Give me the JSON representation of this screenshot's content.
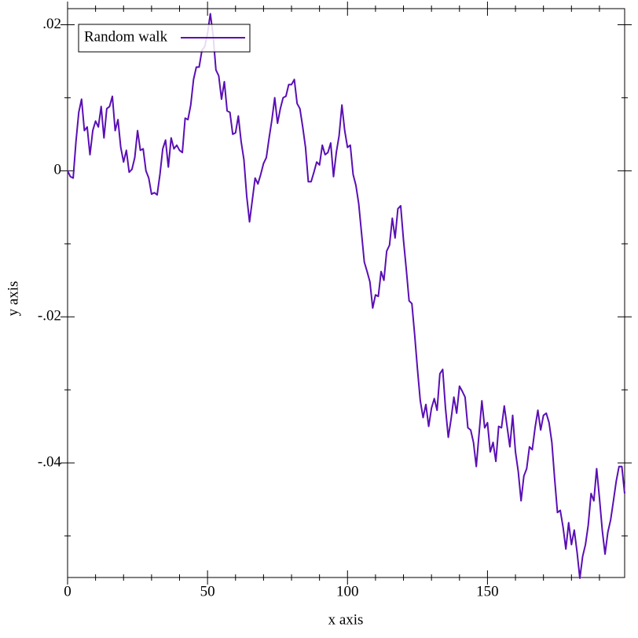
{
  "chart_data": {
    "type": "line",
    "x_label": "x axis",
    "y_label": "y axis",
    "x": [
      0,
      1,
      2,
      3,
      4,
      5,
      6,
      7,
      8,
      9,
      10,
      11,
      12,
      13,
      14,
      15,
      16,
      17,
      18,
      19,
      20,
      21,
      22,
      23,
      24,
      25,
      26,
      27,
      28,
      29,
      30,
      31,
      32,
      33,
      34,
      35,
      36,
      37,
      38,
      39,
      40,
      41,
      42,
      43,
      44,
      45,
      46,
      47,
      48,
      49,
      50,
      51,
      52,
      53,
      54,
      55,
      56,
      57,
      58,
      59,
      60,
      61,
      62,
      63,
      64,
      65,
      66,
      67,
      68,
      69,
      70,
      71,
      72,
      73,
      74,
      75,
      76,
      77,
      78,
      79,
      80,
      81,
      82,
      83,
      84,
      85,
      86,
      87,
      88,
      89,
      90,
      91,
      92,
      93,
      94,
      95,
      96,
      97,
      98,
      99,
      100,
      101,
      102,
      103,
      104,
      105,
      106,
      107,
      108,
      109,
      110,
      111,
      112,
      113,
      114,
      115,
      116,
      117,
      118,
      119,
      120,
      121,
      122,
      123,
      124,
      125,
      126,
      127,
      128,
      129,
      130,
      131,
      132,
      133,
      134,
      135,
      136,
      137,
      138,
      139,
      140,
      141,
      142,
      143,
      144,
      145,
      146,
      147,
      148,
      149,
      150,
      151,
      152,
      153,
      154,
      155,
      156,
      157,
      158,
      159,
      160,
      161,
      162,
      163,
      164,
      165,
      166,
      167,
      168,
      169,
      170,
      171,
      172,
      173,
      174,
      175,
      176,
      177,
      178,
      179,
      180,
      181,
      182,
      183,
      184,
      185,
      186,
      187,
      188,
      189,
      190,
      191,
      192,
      193,
      194,
      195,
      196,
      197,
      198,
      199
    ],
    "series": [
      {
        "name": "Random walk",
        "color": "#5a0fb4",
        "values": [
          0,
          -0.0008,
          -0.001,
          0.004,
          0.008,
          0.0098,
          0.0055,
          0.006,
          0.0022,
          0.0055,
          0.0068,
          0.006,
          0.0088,
          0.0045,
          0.0085,
          0.0088,
          0.0102,
          0.0055,
          0.007,
          0.0032,
          0.0012,
          0.0028,
          -0.0002,
          0.0002,
          0.0018,
          0.0055,
          0.0028,
          0.003,
          0,
          -0.001,
          -0.0032,
          -0.003,
          -0.0033,
          -0.0005,
          0.003,
          0.0042,
          0.0005,
          0.0045,
          0.003,
          0.0035,
          0.0028,
          0.0025,
          0.0072,
          0.007,
          0.009,
          0.0125,
          0.0142,
          0.0142,
          0.0165,
          0.017,
          0.0188,
          0.0215,
          0.0185,
          0.0138,
          0.013,
          0.0098,
          0.0122,
          0.0082,
          0.008,
          0.005,
          0.0052,
          0.0075,
          0.004,
          0.0015,
          -0.0035,
          -0.007,
          -0.004,
          -0.001,
          -0.0018,
          -0.0005,
          0.001,
          0.0018,
          0.0045,
          0.007,
          0.01,
          0.0065,
          0.0085,
          0.01,
          0.0102,
          0.0118,
          0.0118,
          0.0125,
          0.0092,
          0.0085,
          0.006,
          0.0032,
          -0.0015,
          -0.0015,
          -0.0002,
          0.0012,
          0.0008,
          0.0035,
          0.0022,
          0.0025,
          0.0038,
          -0.0008,
          0.0025,
          0.0048,
          0.009,
          0.0055,
          0.0032,
          0.0035,
          -0.0005,
          -0.002,
          -0.0045,
          -0.0085,
          -0.0125,
          -0.0138,
          -0.0152,
          -0.0188,
          -0.017,
          -0.0172,
          -0.0138,
          -0.015,
          -0.011,
          -0.0102,
          -0.0065,
          -0.0092,
          -0.0052,
          -0.0048,
          -0.0095,
          -0.0135,
          -0.0178,
          -0.0182,
          -0.0225,
          -0.0272,
          -0.0315,
          -0.0338,
          -0.032,
          -0.035,
          -0.0325,
          -0.0312,
          -0.0328,
          -0.0278,
          -0.0272,
          -0.0325,
          -0.0365,
          -0.034,
          -0.031,
          -0.0332,
          -0.0295,
          -0.0302,
          -0.031,
          -0.0352,
          -0.0355,
          -0.0372,
          -0.0405,
          -0.036,
          -0.0315,
          -0.0352,
          -0.0345,
          -0.0385,
          -0.0372,
          -0.0398,
          -0.035,
          -0.0352,
          -0.0322,
          -0.035,
          -0.0378,
          -0.0335,
          -0.0385,
          -0.0412,
          -0.0452,
          -0.0418,
          -0.0408,
          -0.0378,
          -0.0382,
          -0.0352,
          -0.0328,
          -0.0355,
          -0.0335,
          -0.0332,
          -0.0345,
          -0.0372,
          -0.0422,
          -0.0468,
          -0.0465,
          -0.0488,
          -0.0518,
          -0.0482,
          -0.0512,
          -0.0492,
          -0.0522,
          -0.0558,
          -0.0528,
          -0.0512,
          -0.0485,
          -0.0442,
          -0.0452,
          -0.0408,
          -0.0448,
          -0.0492,
          -0.0525,
          -0.0495,
          -0.0478,
          -0.0452,
          -0.0425,
          -0.0405,
          -0.0405,
          -0.0442
        ]
      }
    ],
    "xlim": [
      0,
      199
    ],
    "xticks": [
      0,
      50,
      100,
      150
    ],
    "x_minor_ticks": [
      10,
      20,
      30,
      40,
      60,
      70,
      80,
      90,
      110,
      120,
      130,
      140,
      160,
      170,
      180,
      190
    ],
    "ylim": [
      -0.0557,
      0.0222
    ],
    "yticks": [
      {
        "value": -0.04,
        "label": "-.04"
      },
      {
        "value": -0.02,
        "label": "-.02"
      },
      {
        "value": 0,
        "label": "0"
      },
      {
        "value": 0.02,
        "label": ".02"
      }
    ],
    "y_minor_ticks": [
      -0.05,
      -0.03,
      -0.01,
      0.01
    ],
    "legend": "top-left",
    "grid": false
  }
}
